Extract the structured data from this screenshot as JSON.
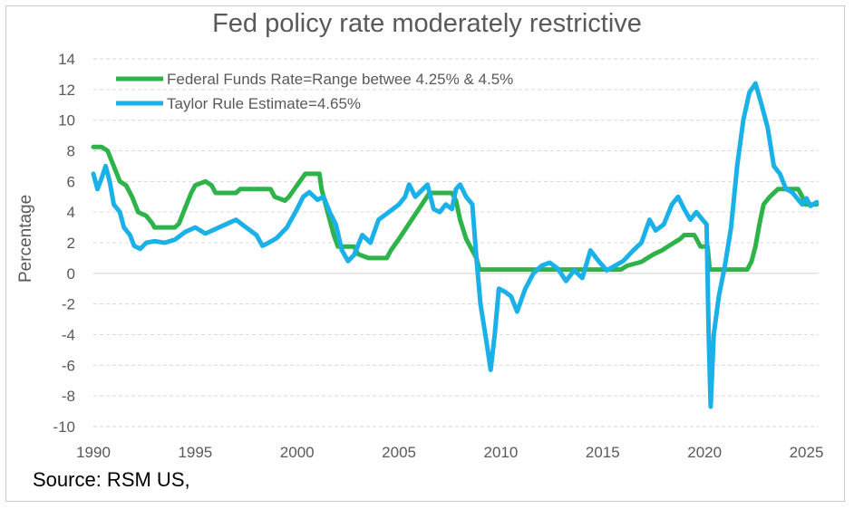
{
  "chart_data": {
    "type": "line",
    "title": "Fed policy rate moderately restrictive",
    "xlabel": "",
    "ylabel": "Percentage",
    "xlim": [
      1990,
      2025.6
    ],
    "ylim": [
      -10,
      14
    ],
    "xticks": [
      1990,
      1995,
      2000,
      2005,
      2010,
      2015,
      2020,
      2025
    ],
    "yticks": [
      -10,
      -8,
      -6,
      -4,
      -2,
      0,
      2,
      4,
      6,
      8,
      10,
      12,
      14
    ],
    "grid": "horizontal dashed",
    "legend_position": "top-left",
    "source": "Source: RSM US,",
    "series": [
      {
        "name": "Federal Funds Rate=Range betwee 4.25% & 4.5%",
        "color": "#2db34a",
        "points": [
          [
            1990,
            8.25
          ],
          [
            1990.4,
            8.25
          ],
          [
            1990.7,
            8.0
          ],
          [
            1991,
            7.0
          ],
          [
            1991.3,
            6.0
          ],
          [
            1991.6,
            5.75
          ],
          [
            1991.9,
            5.0
          ],
          [
            1992.2,
            4.0
          ],
          [
            1992.6,
            3.75
          ],
          [
            1992.9,
            3.25
          ],
          [
            1993,
            3.0
          ],
          [
            1994,
            3.0
          ],
          [
            1994.2,
            3.25
          ],
          [
            1994.5,
            4.25
          ],
          [
            1994.8,
            5.25
          ],
          [
            1995,
            5.75
          ],
          [
            1995.5,
            6.0
          ],
          [
            1995.8,
            5.75
          ],
          [
            1996,
            5.25
          ],
          [
            1997,
            5.25
          ],
          [
            1997.2,
            5.5
          ],
          [
            1998.7,
            5.5
          ],
          [
            1998.9,
            5.0
          ],
          [
            1999.4,
            4.75
          ],
          [
            1999.6,
            5.0
          ],
          [
            2000,
            5.75
          ],
          [
            2000.4,
            6.5
          ],
          [
            2001.1,
            6.5
          ],
          [
            2001.2,
            5.5
          ],
          [
            2001.5,
            4.0
          ],
          [
            2001.8,
            2.5
          ],
          [
            2002,
            1.75
          ],
          [
            2002.8,
            1.75
          ],
          [
            2003,
            1.25
          ],
          [
            2003.5,
            1.0
          ],
          [
            2004.4,
            1.0
          ],
          [
            2004.6,
            1.5
          ],
          [
            2005,
            2.25
          ],
          [
            2005.5,
            3.25
          ],
          [
            2006,
            4.25
          ],
          [
            2006.5,
            5.25
          ],
          [
            2007.6,
            5.25
          ],
          [
            2007.8,
            4.75
          ],
          [
            2008,
            3.5
          ],
          [
            2008.3,
            2.25
          ],
          [
            2008.8,
            1.0
          ],
          [
            2008.95,
            0.25
          ],
          [
            2015.9,
            0.25
          ],
          [
            2016.2,
            0.5
          ],
          [
            2016.9,
            0.75
          ],
          [
            2017.2,
            1.0
          ],
          [
            2017.5,
            1.25
          ],
          [
            2017.9,
            1.5
          ],
          [
            2018.2,
            1.75
          ],
          [
            2018.5,
            2.0
          ],
          [
            2018.8,
            2.25
          ],
          [
            2019.0,
            2.5
          ],
          [
            2019.5,
            2.5
          ],
          [
            2019.6,
            2.25
          ],
          [
            2019.8,
            1.75
          ],
          [
            2020.15,
            1.75
          ],
          [
            2020.25,
            0.25
          ],
          [
            2022.1,
            0.25
          ],
          [
            2022.3,
            0.75
          ],
          [
            2022.5,
            1.75
          ],
          [
            2022.7,
            3.25
          ],
          [
            2022.9,
            4.5
          ],
          [
            2023.2,
            5.0
          ],
          [
            2023.6,
            5.5
          ],
          [
            2024.6,
            5.5
          ],
          [
            2024.8,
            5.0
          ],
          [
            2024.95,
            4.5
          ],
          [
            2025.5,
            4.5
          ]
        ]
      },
      {
        "name": "Taylor Rule Estimate=4.65%",
        "color": "#1ab0e8",
        "points": [
          [
            1990,
            6.5
          ],
          [
            1990.2,
            5.5
          ],
          [
            1990.4,
            6.2
          ],
          [
            1990.6,
            7.0
          ],
          [
            1990.8,
            6.0
          ],
          [
            1991,
            4.5
          ],
          [
            1991.3,
            4.0
          ],
          [
            1991.5,
            3.0
          ],
          [
            1991.8,
            2.5
          ],
          [
            1992,
            1.8
          ],
          [
            1992.3,
            1.6
          ],
          [
            1992.6,
            2.0
          ],
          [
            1993,
            2.1
          ],
          [
            1993.5,
            2.0
          ],
          [
            1994,
            2.2
          ],
          [
            1994.5,
            2.7
          ],
          [
            1995,
            3.0
          ],
          [
            1995.5,
            2.6
          ],
          [
            1996,
            2.9
          ],
          [
            1996.5,
            3.2
          ],
          [
            1997,
            3.5
          ],
          [
            1997.5,
            3.0
          ],
          [
            1998,
            2.5
          ],
          [
            1998.3,
            1.8
          ],
          [
            1998.6,
            2.0
          ],
          [
            1999,
            2.3
          ],
          [
            1999.5,
            3.0
          ],
          [
            2000,
            4.2
          ],
          [
            2000.3,
            5.0
          ],
          [
            2000.6,
            5.3
          ],
          [
            2001,
            4.8
          ],
          [
            2001.3,
            5.0
          ],
          [
            2001.6,
            4.0
          ],
          [
            2001.9,
            3.2
          ],
          [
            2002.2,
            1.5
          ],
          [
            2002.5,
            0.8
          ],
          [
            2002.8,
            1.2
          ],
          [
            2003.2,
            2.5
          ],
          [
            2003.6,
            2.0
          ],
          [
            2004,
            3.5
          ],
          [
            2004.5,
            4.0
          ],
          [
            2005,
            4.5
          ],
          [
            2005.3,
            5.0
          ],
          [
            2005.5,
            5.8
          ],
          [
            2005.8,
            5.0
          ],
          [
            2006.1,
            5.4
          ],
          [
            2006.4,
            5.8
          ],
          [
            2006.7,
            4.2
          ],
          [
            2007,
            4.0
          ],
          [
            2007.3,
            4.5
          ],
          [
            2007.6,
            4.2
          ],
          [
            2007.8,
            5.5
          ],
          [
            2008,
            5.8
          ],
          [
            2008.3,
            5.0
          ],
          [
            2008.6,
            4.5
          ],
          [
            2008.8,
            1.0
          ],
          [
            2009.0,
            -2.0
          ],
          [
            2009.3,
            -4.5
          ],
          [
            2009.5,
            -6.3
          ],
          [
            2009.7,
            -4.0
          ],
          [
            2009.9,
            -1.0
          ],
          [
            2010.2,
            -1.2
          ],
          [
            2010.5,
            -1.5
          ],
          [
            2010.8,
            -2.5
          ],
          [
            2011.2,
            -1.0
          ],
          [
            2011.6,
            0.0
          ],
          [
            2012,
            0.5
          ],
          [
            2012.4,
            0.7
          ],
          [
            2012.8,
            0.3
          ],
          [
            2013.2,
            -0.5
          ],
          [
            2013.6,
            0.2
          ],
          [
            2014,
            -0.3
          ],
          [
            2014.4,
            1.5
          ],
          [
            2014.8,
            0.8
          ],
          [
            2015.2,
            0.2
          ],
          [
            2015.6,
            0.5
          ],
          [
            2016,
            0.8
          ],
          [
            2016.5,
            1.5
          ],
          [
            2016.9,
            2.0
          ],
          [
            2017.3,
            3.5
          ],
          [
            2017.6,
            2.8
          ],
          [
            2018,
            3.2
          ],
          [
            2018.4,
            4.5
          ],
          [
            2018.7,
            5.0
          ],
          [
            2019,
            4.2
          ],
          [
            2019.3,
            3.5
          ],
          [
            2019.6,
            4.0
          ],
          [
            2019.9,
            3.5
          ],
          [
            2020.1,
            3.2
          ],
          [
            2020.2,
            -4.0
          ],
          [
            2020.3,
            -8.7
          ],
          [
            2020.45,
            -4.0
          ],
          [
            2020.7,
            -1.5
          ],
          [
            2021,
            0.5
          ],
          [
            2021.3,
            3.0
          ],
          [
            2021.6,
            7.0
          ],
          [
            2021.9,
            10.0
          ],
          [
            2022.2,
            11.8
          ],
          [
            2022.5,
            12.4
          ],
          [
            2022.8,
            11.0
          ],
          [
            2023.1,
            9.5
          ],
          [
            2023.4,
            7.0
          ],
          [
            2023.7,
            6.5
          ],
          [
            2024,
            5.5
          ],
          [
            2024.3,
            5.3
          ],
          [
            2024.6,
            4.8
          ],
          [
            2024.8,
            4.5
          ],
          [
            2025.0,
            4.9
          ],
          [
            2025.2,
            4.4
          ],
          [
            2025.5,
            4.65
          ]
        ]
      }
    ]
  }
}
